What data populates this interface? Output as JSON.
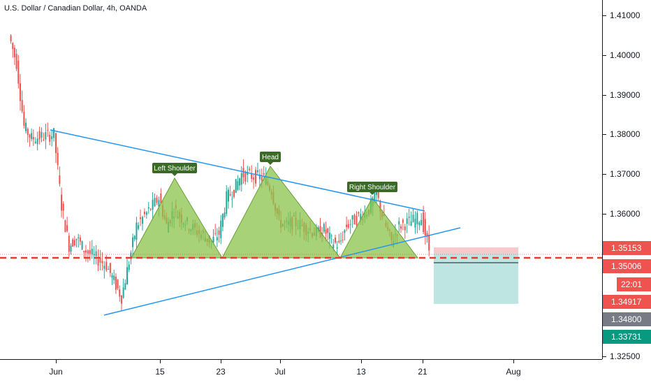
{
  "title": "U.S. Dollar / Canadian Dollar, 4h, OANDA",
  "colors": {
    "up": "#26a69a",
    "down": "#ef5350",
    "trendline": "#2196f3",
    "pattern_fill": "#8bc34a",
    "pattern_stroke": "#689f38",
    "label_bg": "#3a6b26",
    "neckline": "#e53935",
    "stop_zone": "#f8c8cc",
    "target_zone": "#bfe5e2"
  },
  "price_axis": {
    "ticks": [
      "1.41000",
      "1.40000",
      "1.39000",
      "1.38000",
      "1.37000",
      "1.36000",
      "1.32500"
    ],
    "badges": [
      {
        "label": "1.35153",
        "price": 1.35153,
        "color": "#ef5350"
      },
      {
        "label": "1.35006",
        "price": 1.35006,
        "color": "#ef5350"
      },
      {
        "label": "22:01",
        "price": 1.3492,
        "color": "#ef5350"
      },
      {
        "label": "1.34917",
        "price": 1.34917,
        "color": "#ef5350"
      },
      {
        "label": "1.34800",
        "price": 1.348,
        "color": "#787b86"
      },
      {
        "label": "1.33731",
        "price": 1.33731,
        "color": "#089981"
      }
    ]
  },
  "time_axis": {
    "ticks": [
      "Jun",
      "15",
      "23",
      "Jul",
      "13",
      "21",
      "Aug"
    ]
  },
  "chart_data": {
    "type": "line",
    "title": "U.S. Dollar / Canadian Dollar, 4h, OANDA",
    "xlabel": "",
    "ylabel": "",
    "ylim": [
      1.325,
      1.415
    ],
    "x_domain": [
      "2020-05-26",
      "2020-08-11"
    ],
    "series": [
      {
        "values_note": "",
        "x": [
          "2020-05-26",
          "2020-05-27",
          "2020-05-28",
          "2020-05-29",
          "2020-06-01",
          "2020-06-02",
          "2020-06-03",
          "2020-06-04",
          "2020-06-05",
          "2020-06-08",
          "2020-06-09",
          "2020-06-10",
          "2020-06-11",
          "2020-06-12",
          "2020-06-15",
          "2020-06-16",
          "2020-06-17",
          "2020-06-18",
          "2020-06-19",
          "2020-06-22",
          "2020-06-23",
          "2020-06-24",
          "2020-06-25",
          "2020-06-26",
          "2020-06-29",
          "2020-06-30",
          "2020-07-01",
          "2020-07-02",
          "2020-07-03",
          "2020-07-06",
          "2020-07-07",
          "2020-07-08",
          "2020-07-09",
          "2020-07-10",
          "2020-07-13",
          "2020-07-14",
          "2020-07-15",
          "2020-07-16",
          "2020-07-17",
          "2020-07-20",
          "2020-07-21"
        ],
        "values": [
          1.405,
          1.398,
          1.382,
          1.379,
          1.38,
          1.362,
          1.352,
          1.354,
          1.351,
          1.347,
          1.343,
          1.339,
          1.348,
          1.357,
          1.364,
          1.357,
          1.361,
          1.359,
          1.357,
          1.353,
          1.355,
          1.364,
          1.366,
          1.37,
          1.369,
          1.366,
          1.358,
          1.357,
          1.358,
          1.355,
          1.356,
          1.353,
          1.352,
          1.357,
          1.361,
          1.365,
          1.358,
          1.353,
          1.357,
          1.359,
          1.351
        ]
      }
    ],
    "annotations": [
      "Left Shoulder",
      "Head",
      "Right Shoulder"
    ]
  }
}
